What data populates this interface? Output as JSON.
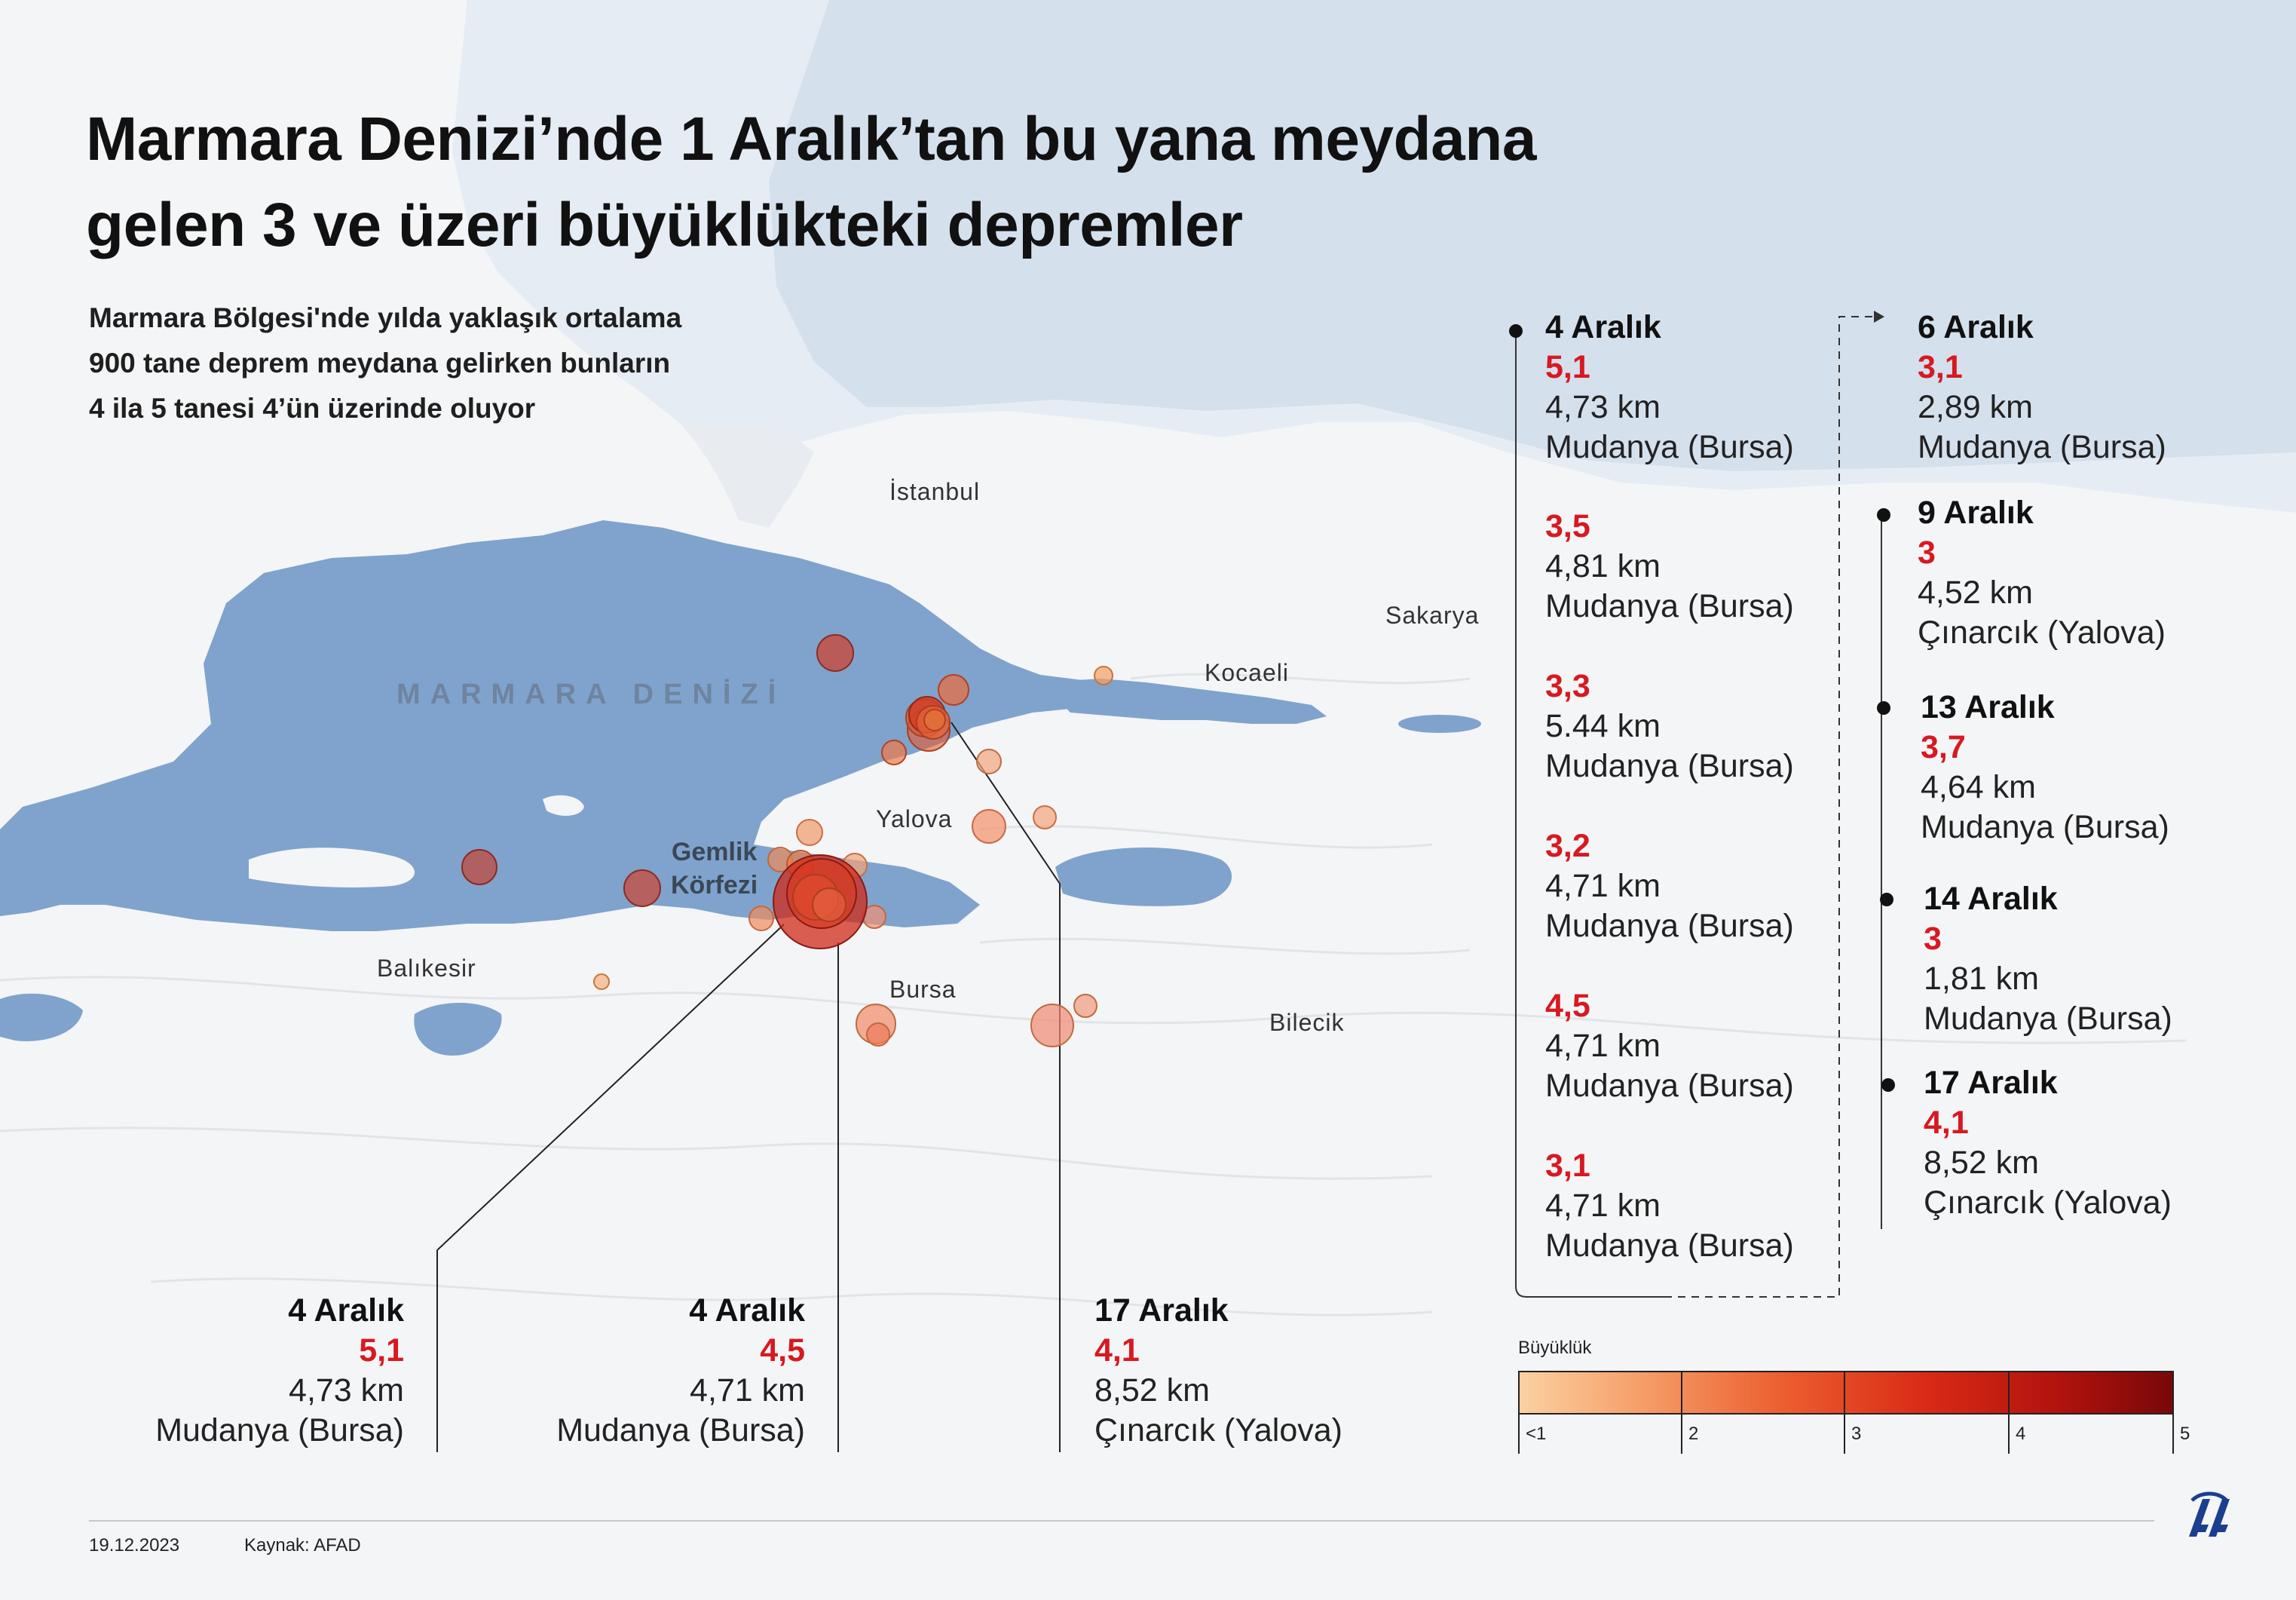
{
  "title": {
    "line1": "Marmara Denizi’nde 1 Aralık’tan bu yana meydana",
    "line2": "gelen 3 ve üzeri büyüklükteki depremler"
  },
  "subtitle": {
    "line1": "Marmara Bölgesi'nde yılda yaklaşık ortalama",
    "line2": "900 tane deprem meydana gelirken bunların",
    "line3": "4 ila 5 tanesi 4’ün üzerinde oluyor"
  },
  "map_labels": {
    "istanbul": "İstanbul",
    "sakarya": "Sakarya",
    "kocaeli": "Kocaeli",
    "yalova": "Yalova",
    "sea": "MARMARA DENİZİ",
    "gulf_line1": "Gemlik",
    "gulf_line2": "Körfezi",
    "balikesir": "Balıkesir",
    "bursa": "Bursa",
    "bilecik": "Bilecik"
  },
  "callouts": [
    {
      "date": "4 Aralık",
      "magnitude": "5,1",
      "depth": "4,73 km",
      "location": "Mudanya (Bursa)"
    },
    {
      "date": "4 Aralık",
      "magnitude": "4,5",
      "depth": "4,71 km",
      "location": "Mudanya (Bursa)"
    },
    {
      "date": "17 Aralık",
      "magnitude": "4,1",
      "depth": "8,52 km",
      "location": "Çınarcık (Yalova)"
    }
  ],
  "timeline_col1": [
    {
      "date": "4 Aralık",
      "magnitude": "5,1",
      "depth": "4,73 km",
      "location": "Mudanya (Bursa)"
    },
    {
      "date": "",
      "magnitude": "3,5",
      "depth": "4,81 km",
      "location": "Mudanya (Bursa)"
    },
    {
      "date": "",
      "magnitude": "3,3",
      "depth": "5.44 km",
      "location": "Mudanya (Bursa)"
    },
    {
      "date": "",
      "magnitude": "3,2",
      "depth": "4,71 km",
      "location": "Mudanya (Bursa)"
    },
    {
      "date": "",
      "magnitude": "4,5",
      "depth": "4,71 km",
      "location": "Mudanya (Bursa)"
    },
    {
      "date": "",
      "magnitude": "3,1",
      "depth": "4,71 km",
      "location": "Mudanya (Bursa)"
    }
  ],
  "timeline_col2": [
    {
      "date": "6 Aralık",
      "magnitude": "3,1",
      "depth": "2,89 km",
      "location": "Mudanya (Bursa)"
    },
    {
      "date": "9 Aralık",
      "magnitude": "3",
      "depth": "4,52 km",
      "location": "Çınarcık (Yalova)"
    },
    {
      "date": "13 Aralık",
      "magnitude": "3,7",
      "depth": "4,64 km",
      "location": "Mudanya (Bursa)"
    },
    {
      "date": "14 Aralık",
      "magnitude": "3",
      "depth": "1,81 km",
      "location": "Mudanya (Bursa)"
    },
    {
      "date": "17 Aralık",
      "magnitude": "4,1",
      "depth": "8,52 km",
      "location": "Çınarcık (Yalova)"
    }
  ],
  "scale": {
    "title": "Büyüklük",
    "labels": [
      "<1",
      "2",
      "3",
      "4",
      "5"
    ],
    "colors": [
      "#fbd1a2",
      "#f6a06a",
      "#ec5f30",
      "#d92b16",
      "#7a0708"
    ]
  },
  "footer": {
    "date": "19.12.2023",
    "source": "Kaynak: AFAD"
  },
  "logo_text": "AA",
  "colors": {
    "sea": "#7fa3cc",
    "magnitude_red": "#d71920"
  }
}
